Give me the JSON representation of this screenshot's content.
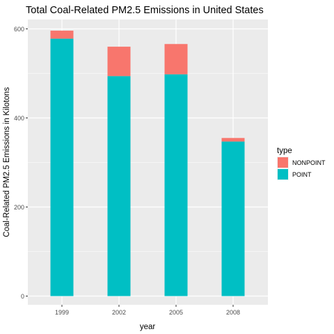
{
  "chart_data": {
    "type": "bar",
    "stacked": true,
    "title": "Total Coal-Related PM2.5 Emissions in United States",
    "xlabel": "year",
    "ylabel": "Coal-Related PM2.5 Emissions in Kilotons",
    "categories": [
      "1999",
      "2002",
      "2005",
      "2008"
    ],
    "ylim": [
      0,
      600
    ],
    "yticks": [
      0,
      200,
      400,
      600
    ],
    "grid": true,
    "legend": {
      "title": "type",
      "placement": "right"
    },
    "series": [
      {
        "name": "POINT",
        "color": "#00BFC4",
        "values": [
          578,
          494,
          498,
          347
        ]
      },
      {
        "name": "NONPOINT",
        "color": "#F8766D",
        "values": [
          18,
          66,
          68,
          8
        ]
      }
    ]
  }
}
